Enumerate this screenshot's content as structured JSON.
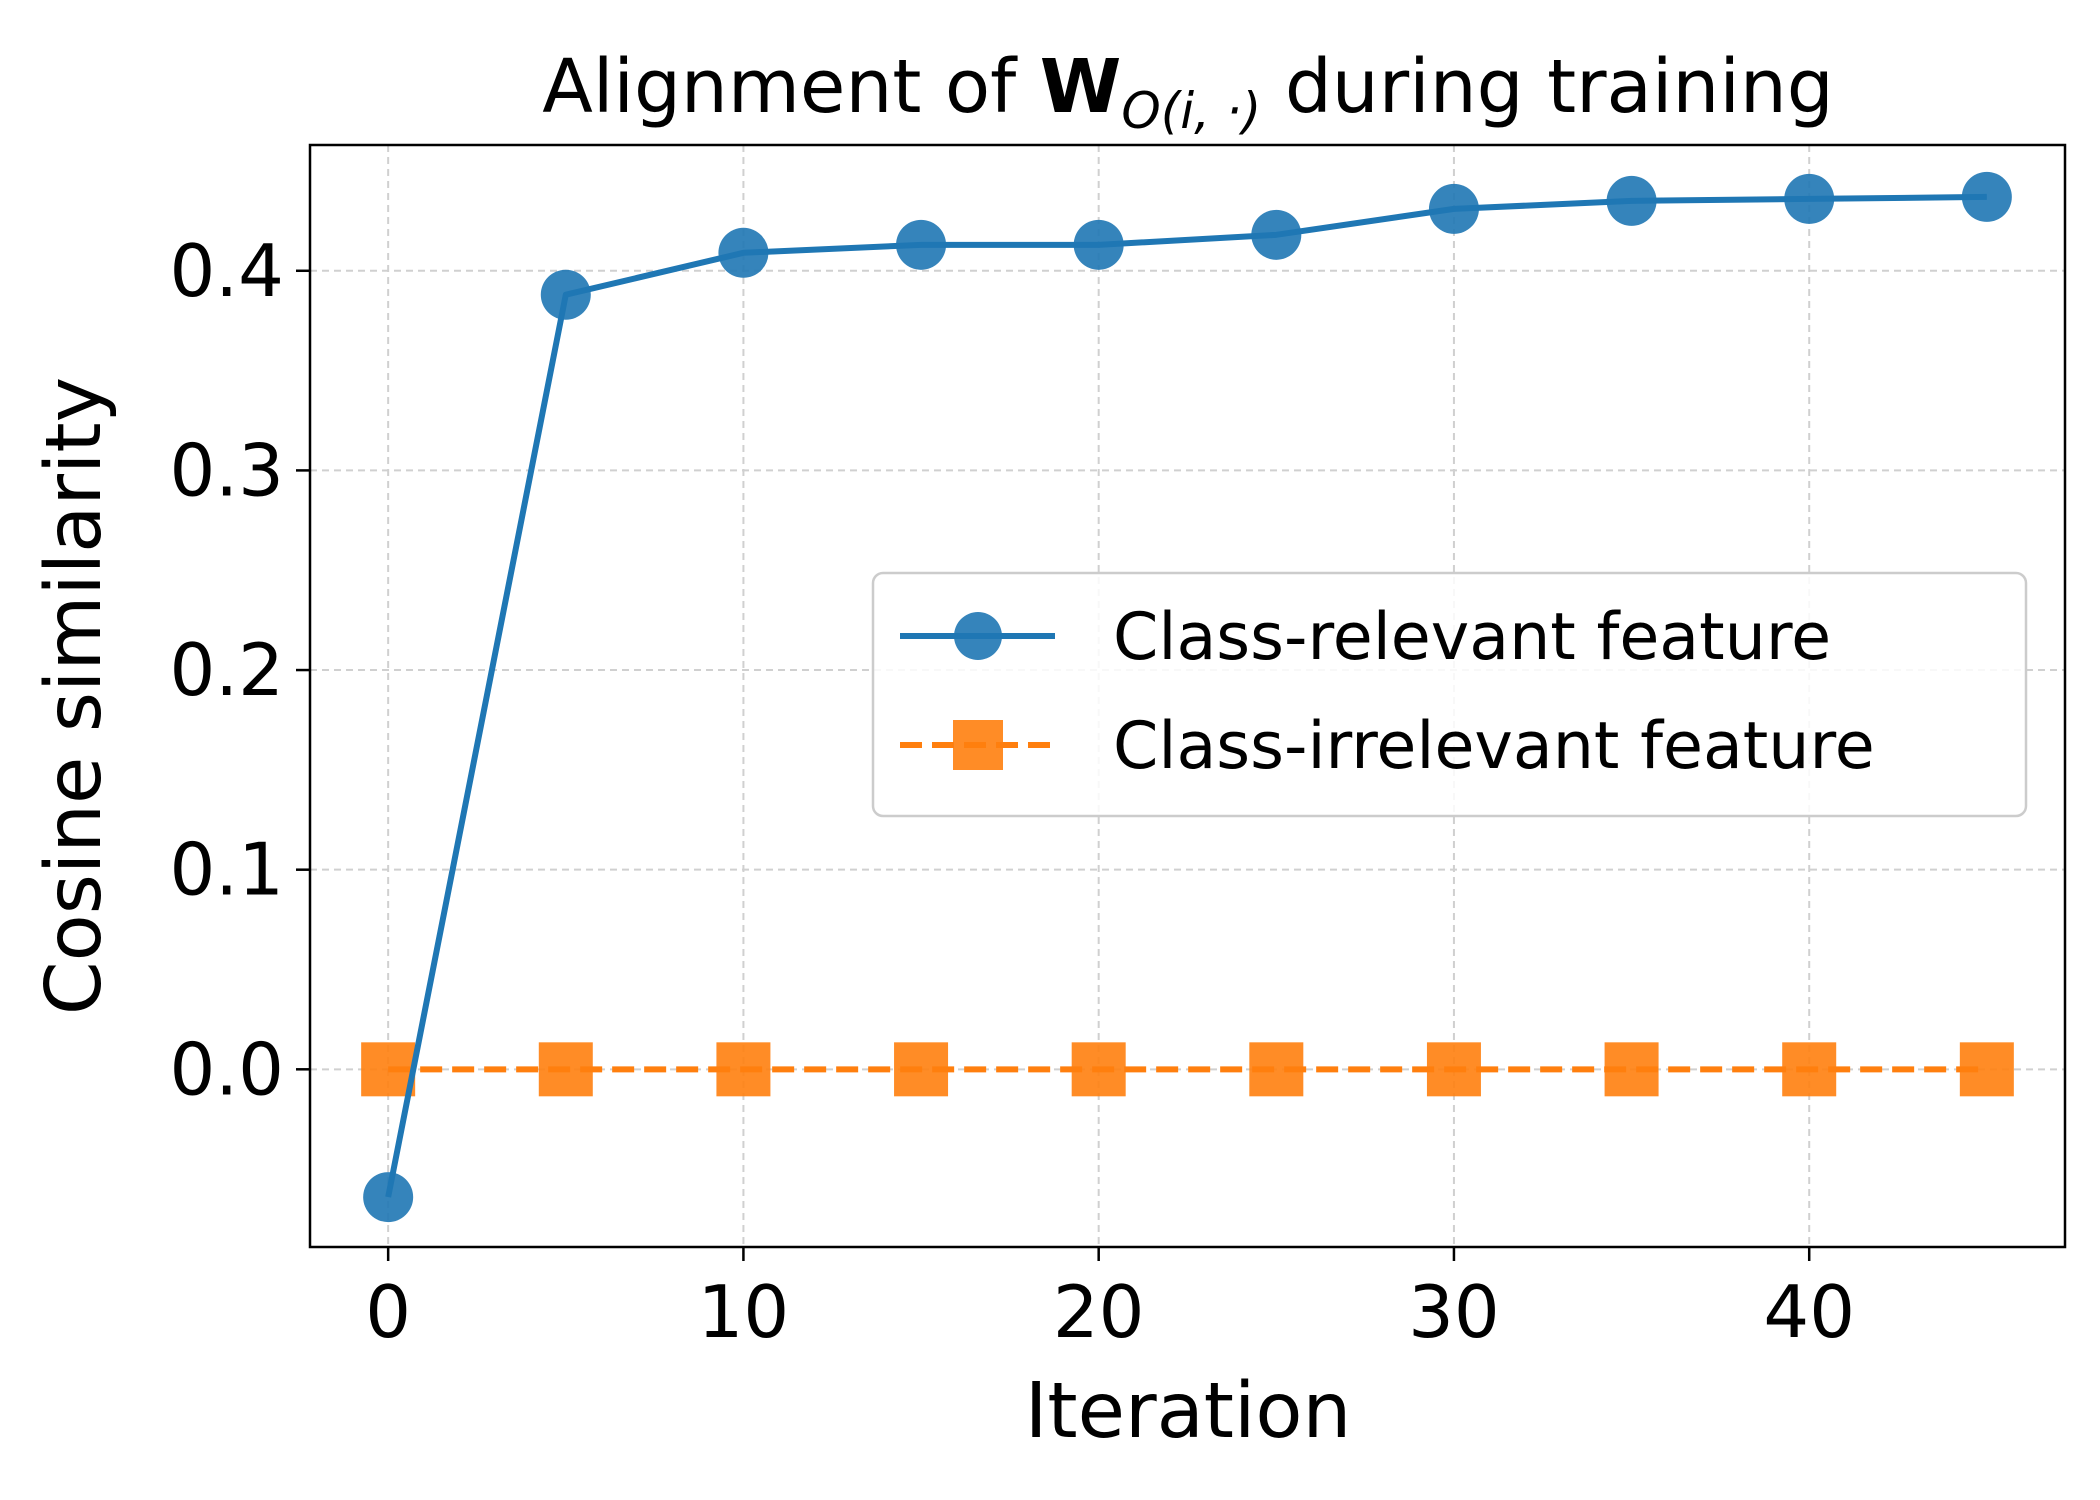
{
  "chart_data": {
    "type": "line",
    "title_prefix": "Alignment of ",
    "title_symbol": "W",
    "title_subscript": "O(i, ·)",
    "title_suffix": " during training",
    "xlabel": "Iteration",
    "ylabel": "Cosine similarity",
    "xlim": [
      -2.2,
      47.2
    ],
    "ylim": [
      -0.089,
      0.463
    ],
    "xticks": [
      0,
      10,
      20,
      30,
      40
    ],
    "xtick_labels": [
      "0",
      "10",
      "20",
      "30",
      "40"
    ],
    "yticks": [
      0.0,
      0.1,
      0.2,
      0.3,
      0.4
    ],
    "ytick_labels": [
      "0.0",
      "0.1",
      "0.2",
      "0.3",
      "0.4"
    ],
    "grid": true,
    "legend_position": "center-right",
    "x": [
      0,
      5,
      10,
      15,
      20,
      25,
      30,
      35,
      40,
      45
    ],
    "series": [
      {
        "name": "Class-relevant feature",
        "values": [
          -0.064,
          0.388,
          0.409,
          0.413,
          0.413,
          0.418,
          0.431,
          0.435,
          0.436,
          0.437
        ],
        "color": "#1f77b4",
        "marker": "circle",
        "linestyle": "solid"
      },
      {
        "name": "Class-irrelevant feature",
        "values": [
          0.0,
          0.0,
          0.0,
          0.0,
          0.0,
          0.0,
          0.0,
          0.0,
          0.0,
          0.0
        ],
        "color": "#ff7f0e",
        "marker": "square",
        "linestyle": "dashed"
      }
    ]
  }
}
